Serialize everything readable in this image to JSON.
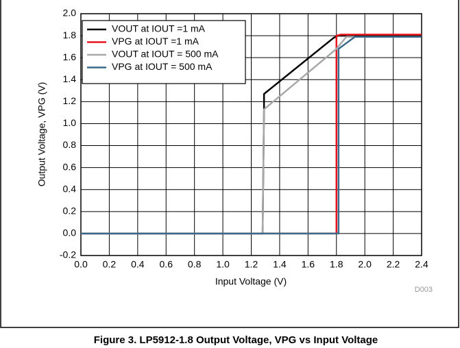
{
  "chart_data": {
    "type": "line",
    "xlabel": "Input Voltage (V)",
    "ylabel": "Output Voltage, VPG (V)",
    "annotation": "D003",
    "caption": "Figure 3. LP5912-1.8 Output Voltage, VPG vs Input Voltage",
    "xlim": [
      0,
      2.4
    ],
    "ylim": [
      -0.2,
      2.0
    ],
    "xticks": [
      {
        "value": 0,
        "label": "0.0"
      },
      0.2,
      0.4,
      0.6,
      0.8,
      {
        "value": 1,
        "label": "1.0"
      },
      1.2,
      1.4,
      1.6,
      1.8,
      {
        "value": 2,
        "label": "2.0"
      },
      2.2,
      2.4
    ],
    "yticks": [
      -0.2,
      {
        "value": 0,
        "label": "0.0"
      },
      0.2,
      0.4,
      0.6,
      0.8,
      {
        "value": 1,
        "label": "1.0"
      },
      1.2,
      1.4,
      1.6,
      1.8,
      {
        "value": 2,
        "label": "2.0"
      }
    ],
    "grid": true,
    "legend": "upper left",
    "series": [
      {
        "name": "VOUT at IOUT =1 mA",
        "color": "#000000",
        "x": [
          0,
          1.28,
          1.29,
          1.29,
          1.78,
          1.81,
          2.4
        ],
        "values": [
          0,
          0,
          1.13,
          1.27,
          1.78,
          1.8,
          1.8
        ]
      },
      {
        "name": "VPG at IOUT =1 mA",
        "color": "#e8141c",
        "x": [
          0,
          1.8,
          1.8,
          1.83,
          2.4
        ],
        "values": [
          0,
          0,
          1.8,
          1.81,
          1.81
        ]
      },
      {
        "name": "VOUT at IOUT = 500 mA",
        "color": "#a8a8a8",
        "x": [
          0,
          1.28,
          1.29,
          1.8,
          1.87,
          2.4
        ],
        "values": [
          0,
          0,
          1.13,
          1.68,
          1.79,
          1.79
        ]
      },
      {
        "name": "VPG at IOUT = 500 mA",
        "color": "#3a6a8a",
        "x": [
          0,
          1.815,
          1.815,
          1.93,
          2.4
        ],
        "values": [
          0,
          0,
          1.68,
          1.79,
          1.79
        ]
      }
    ]
  }
}
